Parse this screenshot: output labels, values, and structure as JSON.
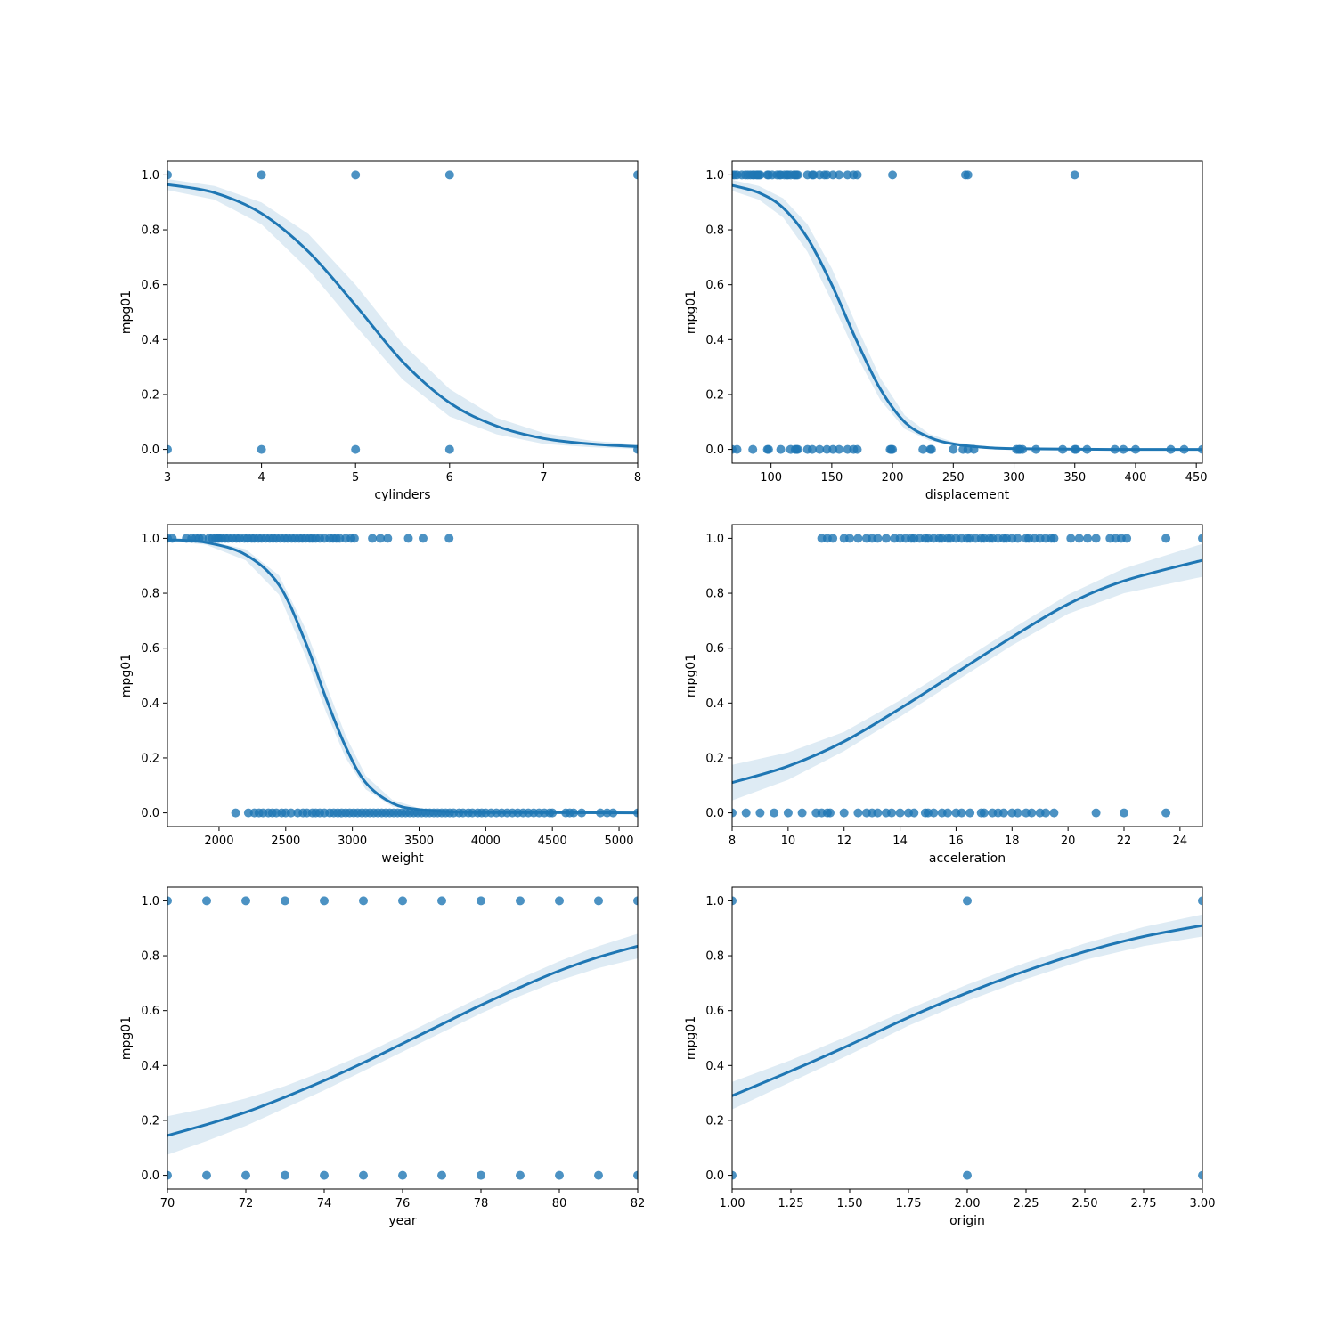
{
  "chart_data": [
    {
      "type": "scatter",
      "xlabel": "cylinders",
      "ylabel": "mpg01",
      "xlim": [
        3,
        8
      ],
      "ylim": [
        -0.05,
        1.05
      ],
      "xticks": [
        "3",
        "4",
        "5",
        "6",
        "7",
        "8"
      ],
      "yticks": [
        "0.0",
        "0.2",
        "0.4",
        "0.6",
        "0.8",
        "1.0"
      ],
      "points_y1": [
        3,
        4,
        5,
        6,
        8
      ],
      "points_y0": [
        3,
        4,
        5,
        6,
        8
      ],
      "fit": [
        [
          3,
          0.965
        ],
        [
          3.5,
          0.935
        ],
        [
          4,
          0.86
        ],
        [
          4.5,
          0.72
        ],
        [
          5,
          0.525
        ],
        [
          5.5,
          0.32
        ],
        [
          6,
          0.17
        ],
        [
          6.5,
          0.085
        ],
        [
          7,
          0.04
        ],
        [
          7.5,
          0.02
        ],
        [
          8,
          0.01
        ]
      ],
      "ci_halfwidth": [
        0.02,
        0.025,
        0.04,
        0.065,
        0.075,
        0.065,
        0.05,
        0.03,
        0.02,
        0.012,
        0.008
      ]
    },
    {
      "type": "scatter",
      "xlabel": "displacement",
      "ylabel": "mpg01",
      "xlim": [
        68,
        455
      ],
      "ylim": [
        -0.05,
        1.05
      ],
      "xticks": [
        "100",
        "150",
        "200",
        "250",
        "300",
        "350",
        "400",
        "450"
      ],
      "yticks": [
        "0.0",
        "0.2",
        "0.4",
        "0.6",
        "0.8",
        "1.0"
      ],
      "points_y1": [
        68,
        70,
        72,
        76,
        79,
        81,
        83,
        85,
        86,
        88,
        89,
        90,
        91,
        97,
        98,
        101,
        105,
        107,
        108,
        111,
        113,
        114,
        116,
        119,
        120,
        121,
        122,
        130,
        134,
        135,
        140,
        144,
        146,
        151,
        156,
        163,
        168,
        171,
        200,
        260,
        262,
        350
      ],
      "points_y0": [
        68,
        72,
        85,
        97,
        98,
        108,
        116,
        120,
        121,
        122,
        130,
        134,
        140,
        146,
        151,
        156,
        163,
        168,
        171,
        198,
        199,
        200,
        225,
        231,
        232,
        250,
        258,
        262,
        267,
        302,
        304,
        305,
        307,
        318,
        340,
        350,
        351,
        360,
        383,
        390,
        400,
        429,
        440,
        455
      ],
      "fit": [
        [
          68,
          0.962
        ],
        [
          90,
          0.935
        ],
        [
          110,
          0.88
        ],
        [
          130,
          0.77
        ],
        [
          150,
          0.6
        ],
        [
          170,
          0.4
        ],
        [
          190,
          0.22
        ],
        [
          210,
          0.1
        ],
        [
          230,
          0.045
        ],
        [
          250,
          0.02
        ],
        [
          280,
          0.006
        ],
        [
          320,
          0.002
        ],
        [
          380,
          0.0
        ],
        [
          455,
          0.0
        ]
      ],
      "ci_halfwidth": [
        0.02,
        0.025,
        0.035,
        0.05,
        0.06,
        0.055,
        0.04,
        0.025,
        0.012,
        0.007,
        0.004,
        0.002,
        0.001,
        0.001
      ]
    },
    {
      "type": "scatter",
      "xlabel": "weight",
      "ylabel": "mpg01",
      "xlim": [
        1613,
        5140
      ],
      "ylim": [
        -0.05,
        1.05
      ],
      "xticks": [
        "2000",
        "2500",
        "3000",
        "3500",
        "4000",
        "4500",
        "5000"
      ],
      "yticks": [
        "0.0",
        "0.2",
        "0.4",
        "0.6",
        "0.8",
        "1.0"
      ],
      "points_y1": [
        1613,
        1649,
        1755,
        1795,
        1825,
        1850,
        1875,
        1925,
        1950,
        1975,
        1990,
        2000,
        2020,
        2045,
        2070,
        2100,
        2130,
        2155,
        2190,
        2215,
        2245,
        2265,
        2295,
        2320,
        2350,
        2380,
        2405,
        2430,
        2460,
        2490,
        2515,
        2545,
        2570,
        2600,
        2625,
        2650,
        2680,
        2700,
        2725,
        2755,
        2790,
        2830,
        2855,
        2880,
        2905,
        2950,
        2990,
        3015,
        3150,
        3210,
        3265,
        3420,
        3530,
        3725
      ],
      "points_y0": [
        2125,
        2220,
        2265,
        2300,
        2330,
        2370,
        2400,
        2430,
        2470,
        2500,
        2540,
        2590,
        2630,
        2660,
        2700,
        2725,
        2755,
        2790,
        2830,
        2860,
        2890,
        2920,
        2950,
        2980,
        3010,
        3040,
        3070,
        3100,
        3130,
        3160,
        3190,
        3220,
        3250,
        3280,
        3310,
        3340,
        3370,
        3400,
        3430,
        3460,
        3490,
        3520,
        3550,
        3580,
        3610,
        3640,
        3670,
        3700,
        3730,
        3760,
        3800,
        3830,
        3870,
        3900,
        3940,
        3970,
        4000,
        4040,
        4080,
        4120,
        4160,
        4200,
        4240,
        4280,
        4320,
        4360,
        4400,
        4440,
        4480,
        4500,
        4600,
        4630,
        4660,
        4720,
        4860,
        4910,
        4955,
        5140
      ],
      "fit": [
        [
          1613,
          0.995
        ],
        [
          1900,
          0.985
        ],
        [
          2200,
          0.94
        ],
        [
          2450,
          0.83
        ],
        [
          2650,
          0.62
        ],
        [
          2800,
          0.42
        ],
        [
          2950,
          0.24
        ],
        [
          3100,
          0.11
        ],
        [
          3300,
          0.035
        ],
        [
          3500,
          0.012
        ],
        [
          3800,
          0.003
        ],
        [
          4200,
          0.001
        ],
        [
          5140,
          0.0
        ]
      ],
      "ci_halfwidth": [
        0.004,
        0.008,
        0.02,
        0.035,
        0.05,
        0.05,
        0.04,
        0.025,
        0.012,
        0.005,
        0.002,
        0.001,
        0.001
      ]
    },
    {
      "type": "scatter",
      "xlabel": "acceleration",
      "ylabel": "mpg01",
      "xlim": [
        8,
        24.8
      ],
      "ylim": [
        -0.05,
        1.05
      ],
      "xticks": [
        "8",
        "10",
        "12",
        "14",
        "16",
        "18",
        "20",
        "22",
        "24"
      ],
      "yticks": [
        "0.0",
        "0.2",
        "0.4",
        "0.6",
        "0.8",
        "1.0"
      ],
      "points_y1": [
        11.2,
        11.4,
        11.6,
        12.0,
        12.2,
        12.5,
        12.8,
        13.0,
        13.2,
        13.5,
        13.8,
        14.0,
        14.2,
        14.4,
        14.5,
        14.7,
        14.9,
        15.0,
        15.2,
        15.4,
        15.5,
        15.7,
        15.8,
        16.0,
        16.2,
        16.4,
        16.5,
        16.7,
        16.9,
        17.0,
        17.2,
        17.3,
        17.5,
        17.7,
        17.8,
        18.0,
        18.2,
        18.5,
        18.6,
        18.8,
        19.0,
        19.2,
        19.4,
        19.5,
        20.1,
        20.4,
        20.7,
        21.0,
        21.5,
        21.7,
        21.9,
        22.1,
        23.5,
        24.8
      ],
      "points_y0": [
        8.0,
        8.5,
        9.0,
        9.5,
        10.0,
        10.5,
        11.0,
        11.2,
        11.4,
        11.5,
        12.0,
        12.5,
        12.8,
        13.0,
        13.2,
        13.5,
        13.7,
        14.0,
        14.3,
        14.5,
        14.9,
        15.0,
        15.2,
        15.5,
        15.7,
        16.0,
        16.2,
        16.5,
        16.9,
        17.0,
        17.3,
        17.5,
        17.7,
        18.0,
        18.2,
        18.5,
        18.7,
        19.0,
        19.2,
        19.5,
        21.0,
        22.0,
        23.5
      ],
      "fit": [
        [
          8,
          0.11
        ],
        [
          10,
          0.17
        ],
        [
          12,
          0.26
        ],
        [
          14,
          0.38
        ],
        [
          16,
          0.51
        ],
        [
          18,
          0.64
        ],
        [
          20,
          0.76
        ],
        [
          22,
          0.845
        ],
        [
          24.8,
          0.92
        ]
      ],
      "ci_halfwidth": [
        0.065,
        0.05,
        0.035,
        0.03,
        0.03,
        0.03,
        0.035,
        0.045,
        0.06
      ]
    },
    {
      "type": "scatter",
      "xlabel": "year",
      "ylabel": "mpg01",
      "xlim": [
        70,
        82
      ],
      "ylim": [
        -0.05,
        1.05
      ],
      "xticks": [
        "70",
        "72",
        "74",
        "76",
        "78",
        "80",
        "82"
      ],
      "yticks": [
        "0.0",
        "0.2",
        "0.4",
        "0.6",
        "0.8",
        "1.0"
      ],
      "points_y1": [
        70,
        71,
        72,
        73,
        74,
        75,
        76,
        77,
        78,
        79,
        80,
        81,
        82
      ],
      "points_y0": [
        70,
        71,
        72,
        73,
        74,
        75,
        76,
        77,
        78,
        79,
        80,
        81,
        82
      ],
      "fit": [
        [
          70,
          0.145
        ],
        [
          71,
          0.185
        ],
        [
          72,
          0.23
        ],
        [
          73,
          0.285
        ],
        [
          74,
          0.345
        ],
        [
          75,
          0.41
        ],
        [
          76,
          0.48
        ],
        [
          77,
          0.55
        ],
        [
          78,
          0.62
        ],
        [
          79,
          0.685
        ],
        [
          80,
          0.745
        ],
        [
          81,
          0.795
        ],
        [
          82,
          0.835
        ]
      ],
      "ci_halfwidth": [
        0.07,
        0.06,
        0.05,
        0.04,
        0.035,
        0.03,
        0.03,
        0.03,
        0.03,
        0.032,
        0.035,
        0.04,
        0.045
      ]
    },
    {
      "type": "scatter",
      "xlabel": "origin",
      "ylabel": "mpg01",
      "xlim": [
        1.0,
        3.0
      ],
      "ylim": [
        -0.05,
        1.05
      ],
      "xticks": [
        "1.00",
        "1.25",
        "1.50",
        "1.75",
        "2.00",
        "2.25",
        "2.50",
        "2.75",
        "3.00"
      ],
      "yticks": [
        "0.0",
        "0.2",
        "0.4",
        "0.6",
        "0.8",
        "1.0"
      ],
      "points_y1": [
        1.0,
        2.0,
        3.0
      ],
      "points_y0": [
        1.0,
        2.0,
        3.0
      ],
      "fit": [
        [
          1.0,
          0.29
        ],
        [
          1.25,
          0.38
        ],
        [
          1.5,
          0.475
        ],
        [
          1.75,
          0.575
        ],
        [
          2.0,
          0.665
        ],
        [
          2.25,
          0.745
        ],
        [
          2.5,
          0.815
        ],
        [
          2.75,
          0.87
        ],
        [
          3.0,
          0.91
        ]
      ],
      "ci_halfwidth": [
        0.05,
        0.04,
        0.035,
        0.03,
        0.03,
        0.03,
        0.03,
        0.035,
        0.04
      ]
    }
  ],
  "colors": {
    "points": "#1f77b4",
    "line": "#1f77b4",
    "band": "#1f77b4"
  }
}
